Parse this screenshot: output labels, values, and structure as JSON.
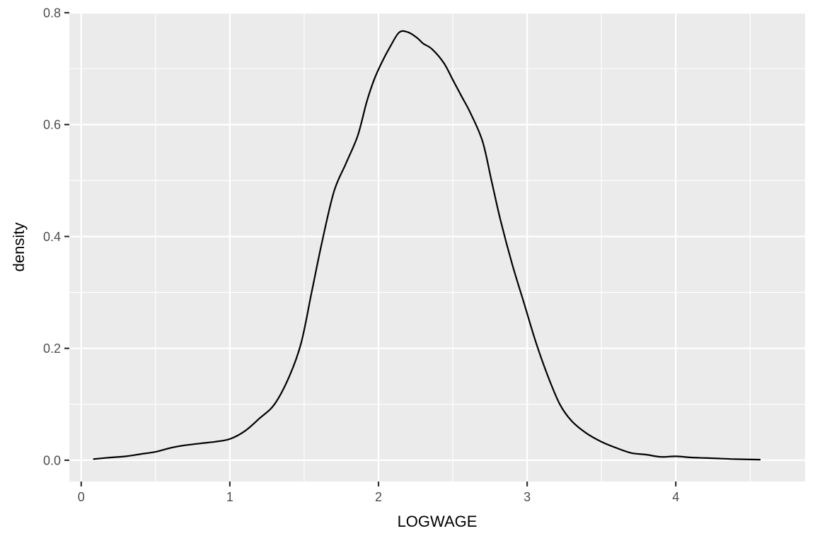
{
  "chart_data": {
    "type": "line",
    "title": "",
    "xlabel": "LOGWAGE",
    "ylabel": "density",
    "xlim": [
      -0.08,
      4.87
    ],
    "ylim": [
      -0.038,
      0.8
    ],
    "x_ticks": [
      0,
      1,
      2,
      3,
      4
    ],
    "x_tick_labels": [
      "0",
      "1",
      "2",
      "3",
      "4"
    ],
    "x_minor_ticks": [
      0.5,
      1.5,
      2.5,
      3.5,
      4.5
    ],
    "y_ticks": [
      0.0,
      0.2,
      0.4,
      0.6,
      0.8
    ],
    "y_tick_labels": [
      "0.0",
      "0.2",
      "0.4",
      "0.6",
      "0.8"
    ],
    "y_minor_ticks": [
      0.1,
      0.3,
      0.5,
      0.7
    ],
    "grid": true,
    "legend": "none",
    "colors": {
      "panel": "#ebebeb",
      "grid": "#ffffff",
      "line": "#000000",
      "tick_label": "#4d4d4d"
    },
    "series": [
      {
        "x": [
          0.08,
          0.2,
          0.3,
          0.4,
          0.5,
          0.6,
          0.68,
          0.8,
          0.9,
          1.0,
          1.1,
          1.2,
          1.3,
          1.4,
          1.48,
          1.55,
          1.62,
          1.7,
          1.78,
          1.86,
          1.92,
          1.97,
          2.02,
          2.08,
          2.14,
          2.2,
          2.26,
          2.3,
          2.36,
          2.44,
          2.5,
          2.56,
          2.62,
          2.7,
          2.76,
          2.82,
          2.9,
          2.98,
          3.06,
          3.14,
          3.22,
          3.3,
          3.4,
          3.5,
          3.6,
          3.7,
          3.8,
          3.9,
          4.0,
          4.1,
          4.2,
          4.3,
          4.4,
          4.57
        ],
        "y": [
          0.002,
          0.005,
          0.007,
          0.011,
          0.015,
          0.022,
          0.026,
          0.03,
          0.033,
          0.038,
          0.052,
          0.075,
          0.1,
          0.15,
          0.21,
          0.3,
          0.39,
          0.48,
          0.53,
          0.58,
          0.64,
          0.68,
          0.71,
          0.74,
          0.765,
          0.765,
          0.755,
          0.745,
          0.735,
          0.71,
          0.68,
          0.65,
          0.62,
          0.57,
          0.5,
          0.43,
          0.35,
          0.28,
          0.21,
          0.15,
          0.1,
          0.07,
          0.048,
          0.033,
          0.022,
          0.013,
          0.01,
          0.006,
          0.007,
          0.005,
          0.004,
          0.003,
          0.002,
          0.001
        ]
      }
    ]
  }
}
